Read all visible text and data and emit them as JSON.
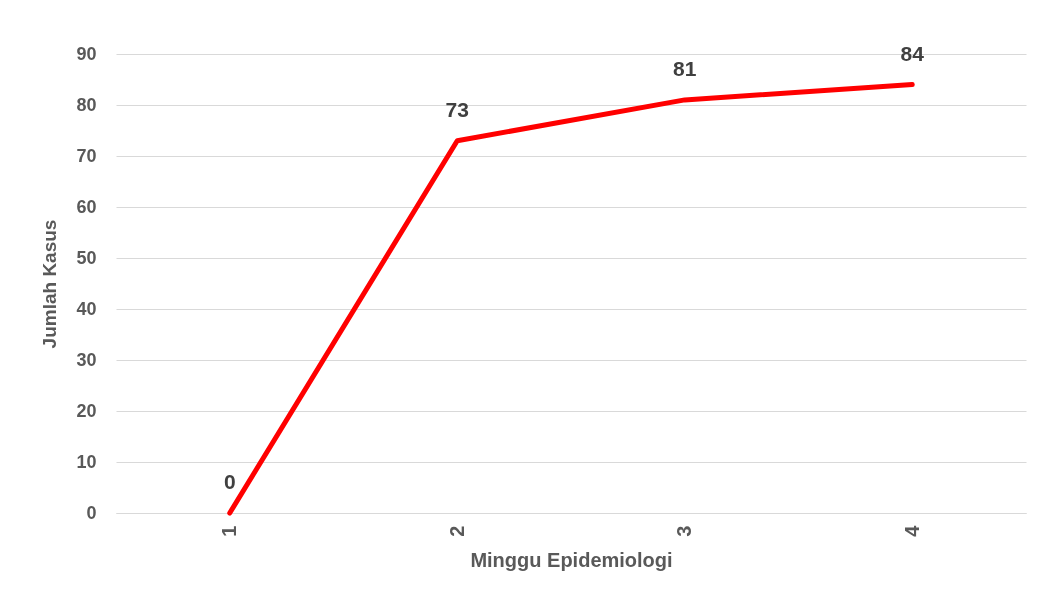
{
  "chart_data": {
    "type": "line",
    "xlabel": "Minggu Epidemiologi",
    "ylabel": "Jumlah Kasus",
    "categories": [
      "1",
      "2",
      "3",
      "4"
    ],
    "series": [
      {
        "color": "#ff0000",
        "values": [
          0,
          73,
          81,
          84
        ]
      }
    ],
    "ylim": [
      0,
      90
    ],
    "yticks": [
      0,
      10,
      20,
      30,
      40,
      50,
      60,
      70,
      80,
      90
    ],
    "grid": "y",
    "data_labels": true
  }
}
